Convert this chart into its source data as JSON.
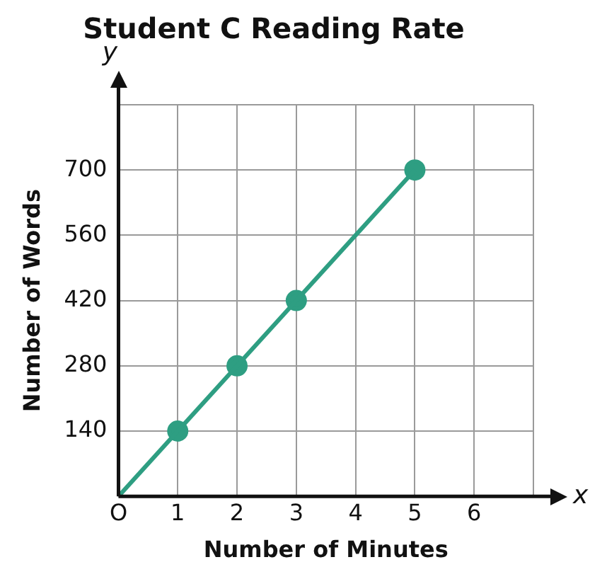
{
  "chart_data": {
    "type": "line",
    "title": "Student C Reading Rate",
    "xlabel": "Number of Minutes",
    "ylabel": "Number of Words",
    "xlim": [
      0,
      7
    ],
    "xticks": [
      {
        "value": 0,
        "label": "O"
      },
      1,
      2,
      3,
      4,
      5,
      6,
      {
        "value": 7,
        "label": null
      }
    ],
    "ylim": [
      0,
      840
    ],
    "yticks": [
      {
        "value": 0,
        "label": null
      },
      140,
      280,
      420,
      560,
      700,
      {
        "value": 840,
        "label": null
      }
    ],
    "grid": true,
    "legend": false,
    "marker": "circle",
    "annotations": [
      "x",
      "y"
    ],
    "series": [
      {
        "type": "line",
        "color": "#2e9e82",
        "marker": "none",
        "x": [
          0,
          5
        ],
        "values": [
          0,
          700
        ]
      },
      {
        "type": "scatter",
        "color": "#2e9e82",
        "x": [
          1,
          2,
          3,
          5
        ],
        "values": [
          140,
          280,
          420,
          700
        ]
      }
    ]
  }
}
